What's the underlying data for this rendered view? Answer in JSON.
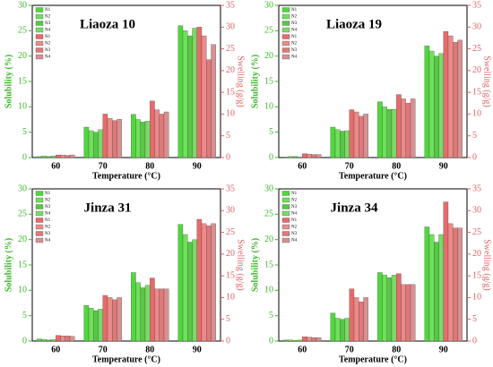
{
  "chart_data": [
    {
      "type": "bar",
      "title": "Liaoza 10",
      "xlabel": "Temperature (°C)",
      "ylabel": "Solubility (%)",
      "y2label": "Swelling (g/g)",
      "categories": [
        "60",
        "70",
        "80",
        "90"
      ],
      "ylim": [
        0,
        30
      ],
      "yticks": [
        0,
        5,
        10,
        15,
        20,
        25,
        30
      ],
      "y2lim": [
        0,
        35
      ],
      "y2ticks": [
        0,
        5,
        10,
        15,
        20,
        25,
        30,
        35
      ],
      "series": [
        {
          "name": "N1",
          "color": "#4fd83c",
          "values": [
            0.2,
            6,
            8.5,
            26
          ]
        },
        {
          "name": "N2",
          "color": "#6fe05a",
          "values": [
            0.3,
            5.3,
            7.5,
            25
          ]
        },
        {
          "name": "N3",
          "color": "#55c944",
          "values": [
            0.2,
            5,
            7,
            24
          ]
        },
        {
          "name": "N4",
          "color": "#7ada66",
          "values": [
            0.3,
            5.5,
            7.2,
            25.5
          ]
        },
        {
          "name": "N1",
          "color": "#e86a6a",
          "axis": "y2",
          "values": [
            0.6,
            10,
            13,
            30
          ]
        },
        {
          "name": "N2",
          "color": "#ec8a8a",
          "axis": "y2",
          "values": [
            0.6,
            9,
            11,
            28
          ]
        },
        {
          "name": "N3",
          "color": "#e07878",
          "axis": "y2",
          "values": [
            0.5,
            8.5,
            10,
            22.5
          ]
        },
        {
          "name": "N4",
          "color": "#d99090",
          "axis": "y2",
          "values": [
            0.6,
            8.8,
            10.5,
            26
          ]
        }
      ]
    },
    {
      "type": "bar",
      "title": "Liaoza 19",
      "xlabel": "Temperature (°C)",
      "ylabel": "Solubility (%)",
      "y2label": "Swelling (g/g)",
      "categories": [
        "60",
        "70",
        "80",
        "90"
      ],
      "ylim": [
        0,
        30
      ],
      "yticks": [
        0,
        5,
        10,
        15,
        20,
        25,
        30
      ],
      "y2lim": [
        0,
        35
      ],
      "y2ticks": [
        0,
        5,
        10,
        15,
        20,
        25,
        30,
        35
      ],
      "series": [
        {
          "name": "N1",
          "color": "#4fd83c",
          "values": [
            0.1,
            6,
            11,
            22
          ]
        },
        {
          "name": "N2",
          "color": "#6fe05a",
          "values": [
            0.2,
            5.5,
            10,
            21
          ]
        },
        {
          "name": "N3",
          "color": "#55c944",
          "values": [
            0.2,
            5.2,
            9.5,
            20
          ]
        },
        {
          "name": "N4",
          "color": "#7ada66",
          "values": [
            0.1,
            5.3,
            9.5,
            20.5
          ]
        },
        {
          "name": "N1",
          "color": "#e86a6a",
          "axis": "y2",
          "values": [
            0.9,
            11,
            14.5,
            29
          ]
        },
        {
          "name": "N2",
          "color": "#ec8a8a",
          "axis": "y2",
          "values": [
            0.8,
            10.5,
            13.5,
            28
          ]
        },
        {
          "name": "N3",
          "color": "#e07878",
          "axis": "y2",
          "values": [
            0.7,
            9.5,
            12.5,
            26.5
          ]
        },
        {
          "name": "N4",
          "color": "#d99090",
          "axis": "y2",
          "values": [
            0.7,
            10,
            13.5,
            27
          ]
        }
      ]
    },
    {
      "type": "bar",
      "title": "Jinza 31",
      "xlabel": "Temperature (°C)",
      "ylabel": "Solubility (%)",
      "y2label": "Swelling (g/g)",
      "categories": [
        "60",
        "70",
        "80",
        "90"
      ],
      "ylim": [
        0,
        30
      ],
      "yticks": [
        0,
        5,
        10,
        15,
        20,
        25,
        30
      ],
      "y2lim": [
        0,
        35
      ],
      "y2ticks": [
        0,
        5,
        10,
        15,
        20,
        25,
        30,
        35
      ],
      "series": [
        {
          "name": "N1",
          "color": "#4fd83c",
          "values": [
            0.4,
            7,
            13.5,
            23
          ]
        },
        {
          "name": "N2",
          "color": "#6fe05a",
          "values": [
            0.3,
            6.5,
            11.5,
            21
          ]
        },
        {
          "name": "N3",
          "color": "#55c944",
          "values": [
            0.2,
            6,
            10.5,
            19.5
          ]
        },
        {
          "name": "N4",
          "color": "#7ada66",
          "values": [
            0.3,
            6.3,
            11,
            20
          ]
        },
        {
          "name": "N1",
          "color": "#e86a6a",
          "axis": "y2",
          "values": [
            1.3,
            10.5,
            14.5,
            28
          ]
        },
        {
          "name": "N2",
          "color": "#ec8a8a",
          "axis": "y2",
          "values": [
            1.2,
            10,
            12,
            27
          ]
        },
        {
          "name": "N3",
          "color": "#e07878",
          "axis": "y2",
          "values": [
            1.2,
            9.5,
            12,
            26.5
          ]
        },
        {
          "name": "N4",
          "color": "#d99090",
          "axis": "y2",
          "values": [
            1.1,
            10,
            12,
            27
          ]
        }
      ]
    },
    {
      "type": "bar",
      "title": "Jinza 34",
      "xlabel": "Temperature (°C)",
      "ylabel": "Solubility (%)",
      "y2label": "Swelling (g/g)",
      "categories": [
        "60",
        "70",
        "80",
        "90"
      ],
      "ylim": [
        0,
        30
      ],
      "yticks": [
        0,
        5,
        10,
        15,
        20,
        25,
        30
      ],
      "y2lim": [
        0,
        35
      ],
      "y2ticks": [
        0,
        5,
        10,
        15,
        20,
        25,
        30,
        35
      ],
      "series": [
        {
          "name": "N1",
          "color": "#4fd83c",
          "values": [
            0.2,
            5.5,
            13.5,
            22.5
          ]
        },
        {
          "name": "N2",
          "color": "#6fe05a",
          "values": [
            0.2,
            4.5,
            13,
            21
          ]
        },
        {
          "name": "N3",
          "color": "#55c944",
          "values": [
            0.1,
            4.3,
            12.5,
            19.5
          ]
        },
        {
          "name": "N4",
          "color": "#7ada66",
          "values": [
            0.2,
            4.5,
            13,
            21
          ]
        },
        {
          "name": "N1",
          "color": "#e86a6a",
          "axis": "y2",
          "values": [
            1,
            12,
            15.5,
            32
          ]
        },
        {
          "name": "N2",
          "color": "#ec8a8a",
          "axis": "y2",
          "values": [
            0.9,
            10,
            13,
            27
          ]
        },
        {
          "name": "N3",
          "color": "#e07878",
          "axis": "y2",
          "values": [
            0.8,
            9,
            13,
            26
          ]
        },
        {
          "name": "N4",
          "color": "#d99090",
          "axis": "y2",
          "values": [
            0.8,
            10,
            13,
            26
          ]
        }
      ]
    }
  ]
}
